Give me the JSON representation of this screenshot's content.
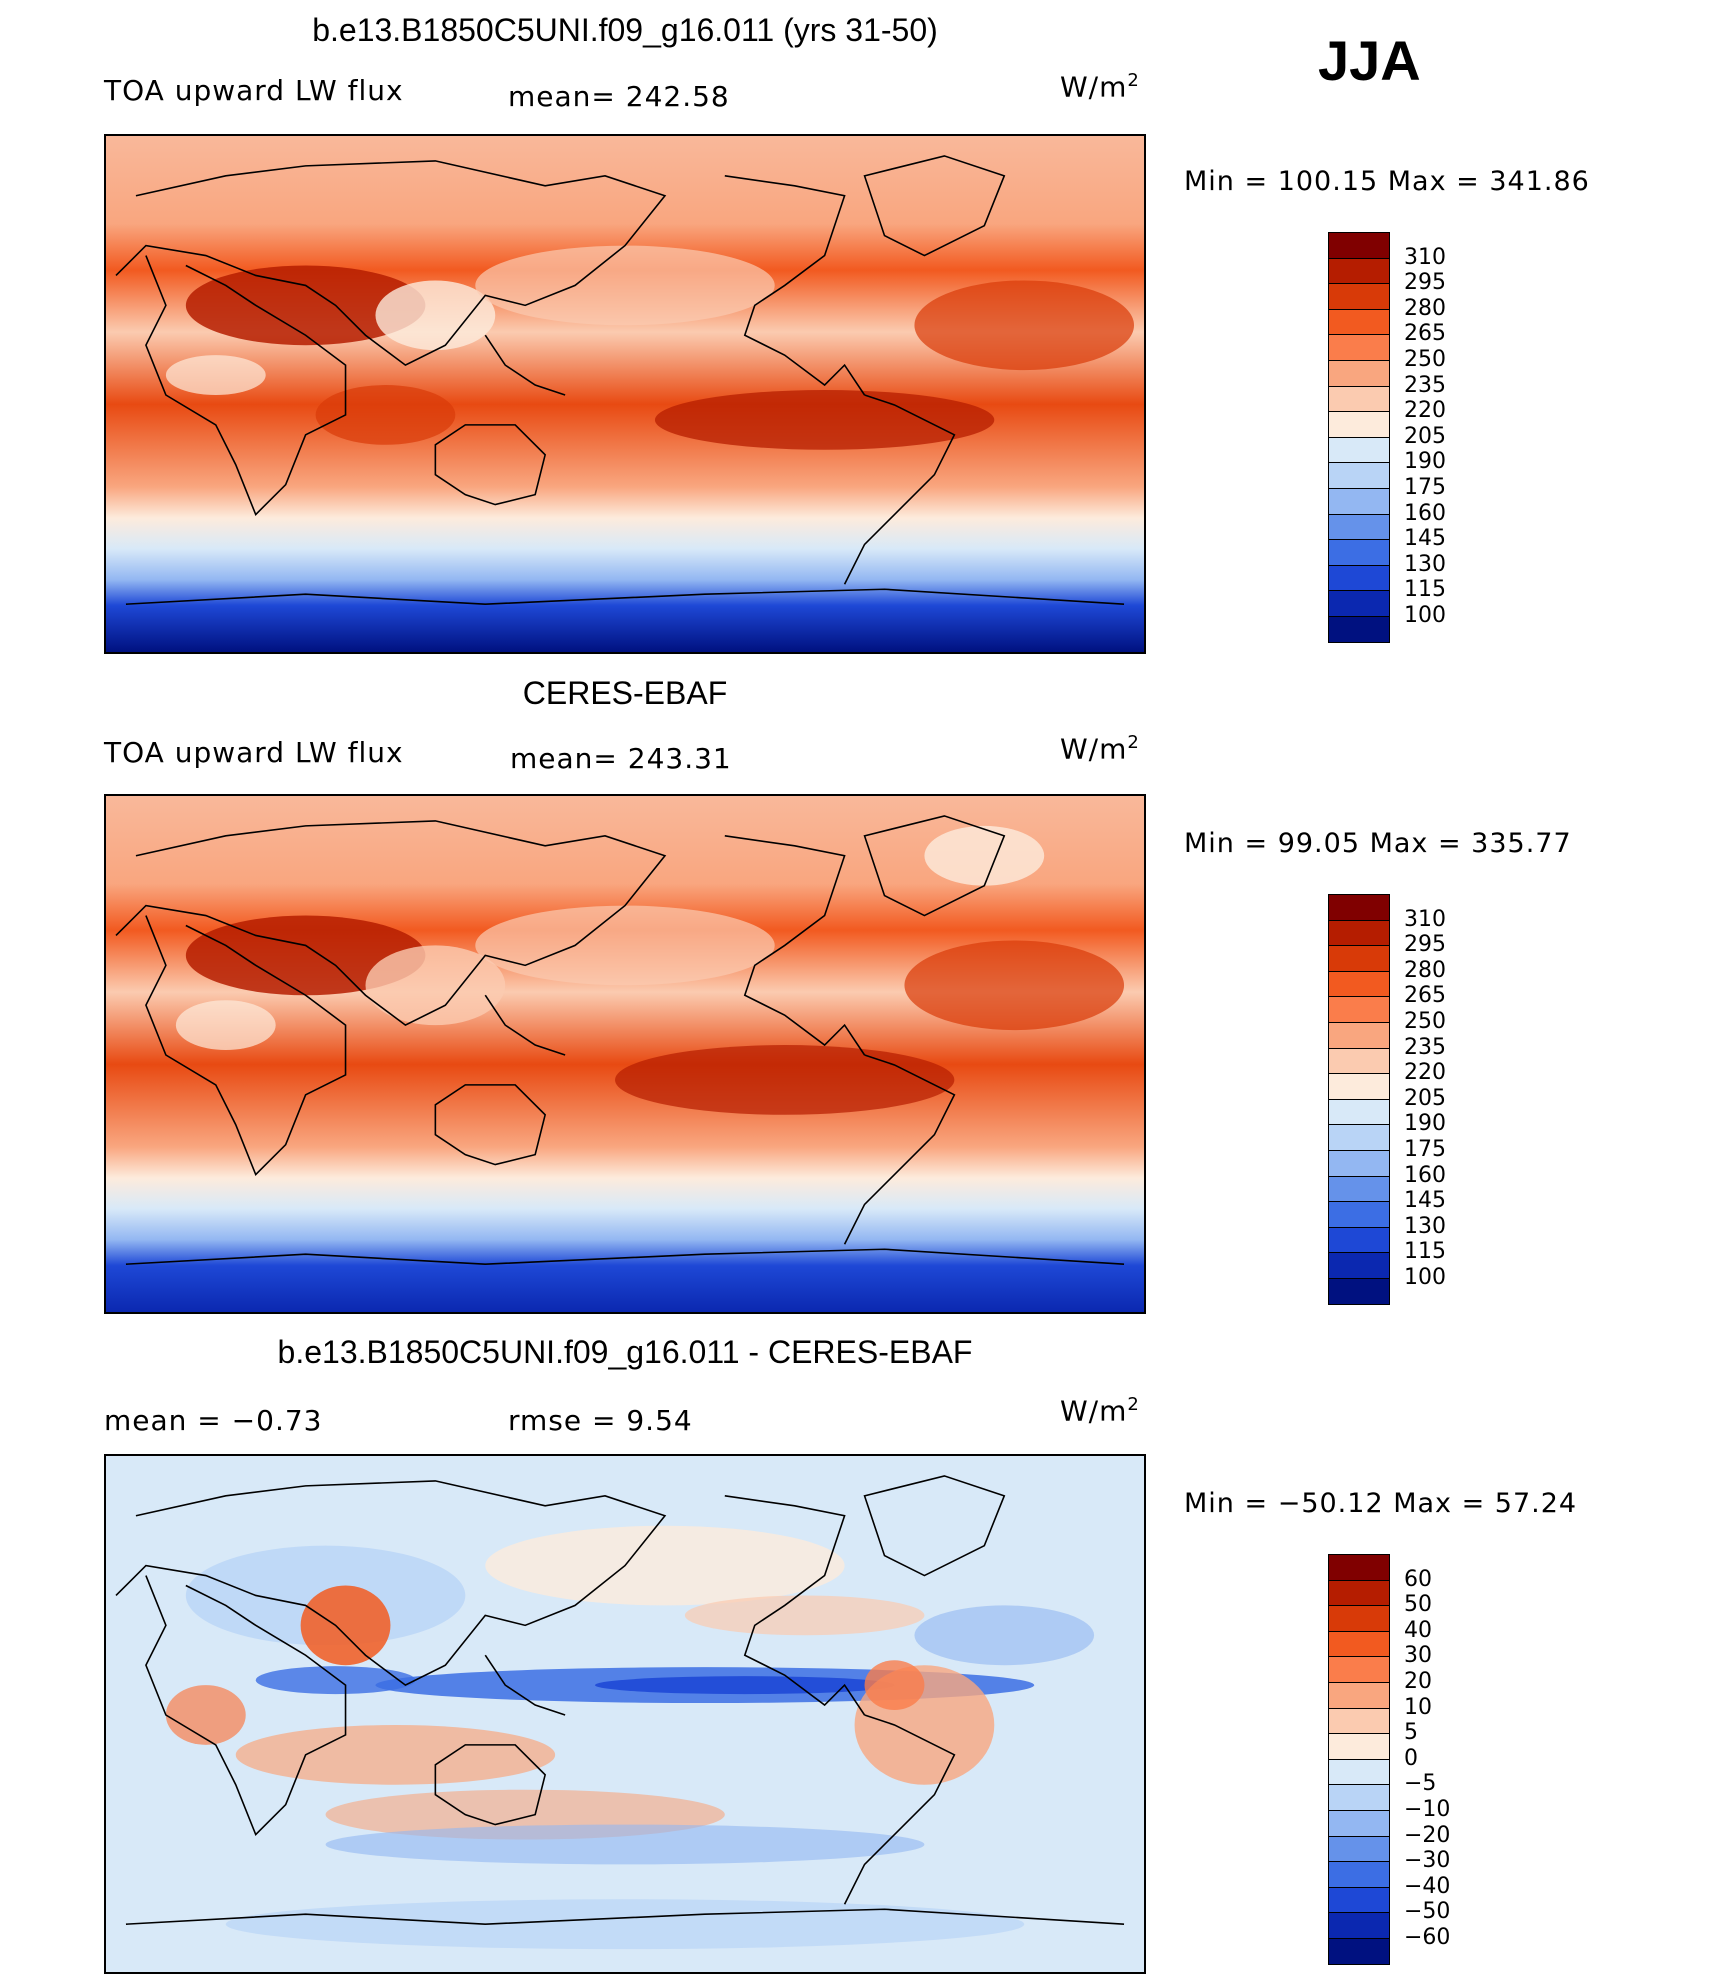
{
  "season": "JJA",
  "panels": [
    {
      "id": "model",
      "title": "b.e13.B1850C5UNI.f09_g16.011 (yrs 31-50)",
      "left_label": "TOA upward LW flux",
      "mid_label": "mean= 242.58",
      "units": "W/m",
      "units_sup": "2",
      "minmax": "Min  =  100.15  Max  =  341.86",
      "colorbar_labels": [
        "310",
        "295",
        "280",
        "265",
        "250",
        "235",
        "220",
        "205",
        "190",
        "175",
        "160",
        "145",
        "130",
        "115",
        "100"
      ]
    },
    {
      "id": "obs",
      "title": "CERES-EBAF",
      "left_label": "TOA upward LW flux",
      "mid_label": "mean= 243.31",
      "units": "W/m",
      "units_sup": "2",
      "minmax": "Min  =    99.05  Max  =  335.77",
      "colorbar_labels": [
        "310",
        "295",
        "280",
        "265",
        "250",
        "235",
        "220",
        "205",
        "190",
        "175",
        "160",
        "145",
        "130",
        "115",
        "100"
      ]
    },
    {
      "id": "diff",
      "title": "b.e13.B1850C5UNI.f09_g16.011 - CERES-EBAF",
      "left_label": "mean  =    −0.73",
      "mid_label": "rmse  =     9.54",
      "units": "W/m",
      "units_sup": "2",
      "minmax": "Min  =  −50.12  Max  =    57.24",
      "colorbar_labels": [
        "60",
        "50",
        "40",
        "30",
        "20",
        "10",
        "5",
        "0",
        "−5",
        "−10",
        "−20",
        "−30",
        "−40",
        "−50",
        "−60"
      ]
    }
  ],
  "colors": {
    "abs_scale": [
      "#800000",
      "#b51d00",
      "#d83a08",
      "#f25a20",
      "#fa7d4b",
      "#f9a67f",
      "#fbcbb0",
      "#fdebdc",
      "#d8e9f8",
      "#b9d4f6",
      "#93b7f2",
      "#6592ea",
      "#3c6ee4",
      "#1e48d6",
      "#0b28b0",
      "#001180"
    ],
    "diff_scale": [
      "#800000",
      "#b51d00",
      "#d83a08",
      "#f25a20",
      "#fa7d4b",
      "#f9a67f",
      "#fbcbb0",
      "#fdebdc",
      "#d8e9f8",
      "#b9d4f6",
      "#93b7f2",
      "#6592ea",
      "#3c6ee4",
      "#1e48d6",
      "#0b28b0",
      "#001180"
    ]
  }
}
